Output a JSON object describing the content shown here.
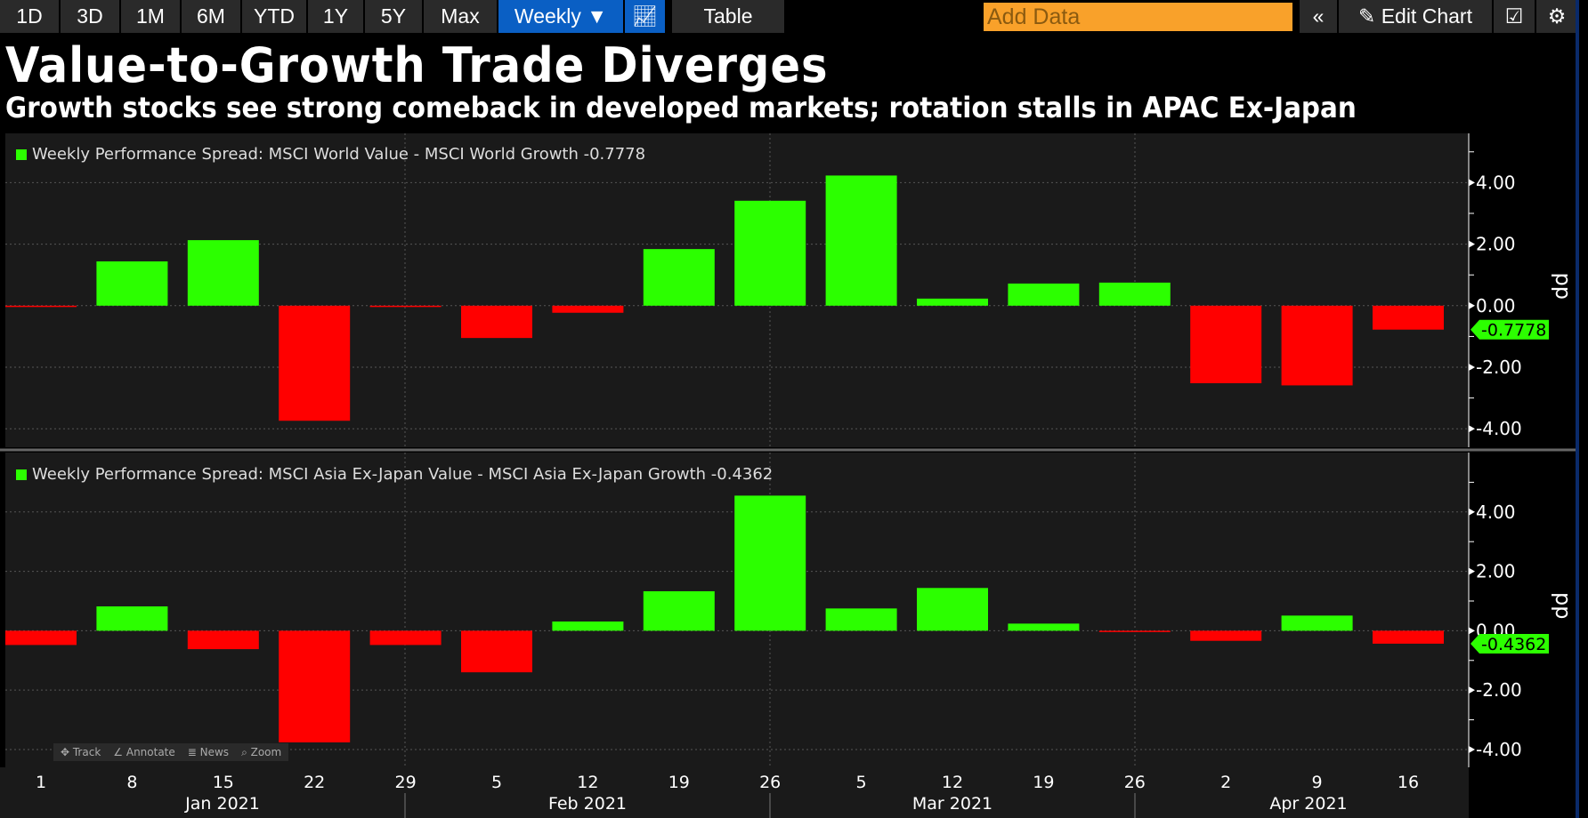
{
  "toolbar": {
    "ranges": [
      "1D",
      "3D",
      "1M",
      "6M",
      "YTD",
      "1Y",
      "5Y",
      "Max"
    ],
    "frequency": "Weekly ▼",
    "chart_icon": "line-chart-icon",
    "table": "Table",
    "add_data_placeholder": "Add Data",
    "collapse": "«",
    "edit_chart": "✎ Edit Chart",
    "edit_icon": "edit-icon",
    "settings_icon": "gear-icon"
  },
  "title": "Value-to-Growth Trade Diverges",
  "subtitle": "Growth stocks see strong comeback in developed markets; rotation stalls in APAC Ex-Japan",
  "tools": [
    "✥ Track",
    "∠ Annotate",
    "≣ News",
    "⌕ Zoom"
  ],
  "colors": {
    "positive": "#2cff00",
    "negative": "#ff0000",
    "background": "#1a1a1a"
  },
  "chart_data": [
    {
      "type": "bar",
      "legend": "Weekly Performance Spread: MSCI World Value - MSCI World Growth -0.7778",
      "last_value_label": "-0.7778",
      "ylabel": "pp",
      "ylim": [
        -4.6,
        5.6
      ],
      "yticks": [
        "4.00",
        "2.00",
        "0.00",
        "-2.00",
        "-4.00"
      ],
      "categories": [
        "1",
        "8",
        "15",
        "22",
        "29",
        "5",
        "12",
        "19",
        "26",
        "5",
        "12",
        "19",
        "26",
        "2",
        "9",
        "16"
      ],
      "values": [
        -0.02,
        1.44,
        2.13,
        -3.74,
        -0.02,
        -1.05,
        -0.23,
        1.84,
        3.41,
        4.23,
        0.23,
        0.72,
        0.75,
        -2.52,
        -2.59,
        -0.7778
      ]
    },
    {
      "type": "bar",
      "legend": "Weekly Performance Spread: MSCI Asia Ex-Japan Value - MSCI Asia Ex-Japan Growth -0.4362",
      "last_value_label": "-0.4362",
      "ylabel": "pp",
      "ylim": [
        -4.6,
        6.0
      ],
      "yticks": [
        "4.00",
        "2.00",
        "0.00",
        "-2.00",
        "-4.00"
      ],
      "categories": [
        "1",
        "8",
        "15",
        "22",
        "29",
        "5",
        "12",
        "19",
        "26",
        "5",
        "12",
        "19",
        "26",
        "2",
        "9",
        "16"
      ],
      "values": [
        -0.48,
        0.82,
        -0.62,
        -3.76,
        -0.48,
        -1.4,
        0.31,
        1.33,
        4.55,
        0.75,
        1.44,
        0.24,
        -0.02,
        -0.34,
        0.51,
        -0.4362
      ]
    }
  ],
  "months": [
    "Jan 2021",
    "Feb 2021",
    "Mar 2021",
    "Apr 2021"
  ]
}
